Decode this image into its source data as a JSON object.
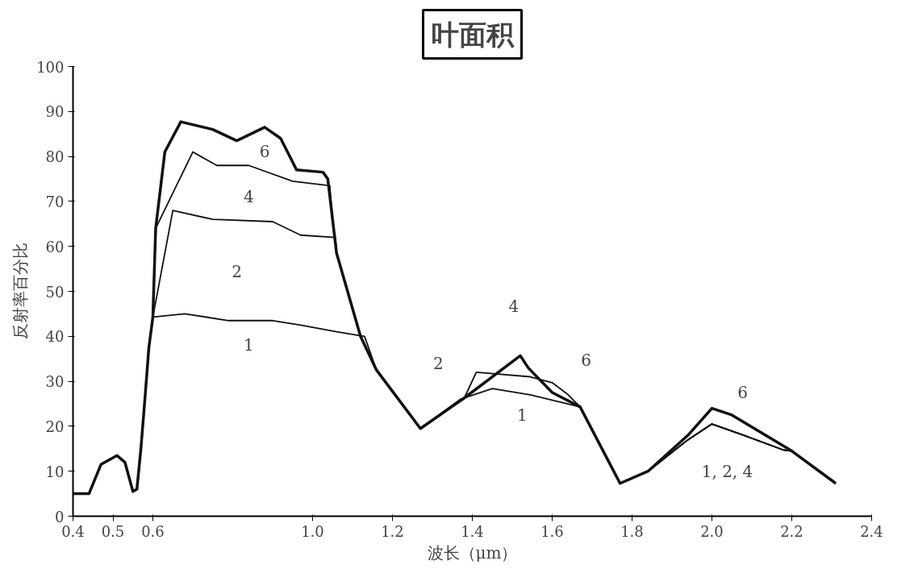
{
  "chart_data": {
    "type": "line",
    "title": "叶面积",
    "xlabel": "波长（μm）",
    "ylabel": "反射率百分比",
    "xlim": [
      0.4,
      2.4
    ],
    "xticks": [
      0.4,
      0.5,
      0.6,
      {
        "value": 1.0,
        "label": "1.0"
      },
      1.2,
      1.4,
      1.6,
      1.8,
      {
        "value": 2.0,
        "label": "2.0"
      },
      2.2,
      2.4
    ],
    "ylim": [
      0,
      100
    ],
    "yticks": [
      0,
      10,
      20,
      30,
      40,
      50,
      60,
      70,
      80,
      90,
      100
    ],
    "grid": false,
    "marker": "none",
    "line_style": "solid",
    "series": [
      {
        "color": "#111111",
        "x": [
          0.4,
          0.44,
          0.47,
          0.51,
          0.53,
          0.55,
          0.56,
          0.57,
          0.58,
          0.59,
          0.6,
          0.68,
          0.79,
          0.9,
          0.97,
          1.06,
          1.13,
          1.16,
          1.27,
          1.37,
          1.45,
          1.545,
          1.67,
          1.77,
          1.84,
          1.94,
          2.0,
          2.08,
          2.18,
          2.2,
          2.31
        ],
        "values": [
          5,
          5,
          11.5,
          13.5,
          12,
          5.5,
          6,
          15,
          26,
          37.5,
          44.3,
          45,
          43.5,
          43.5,
          42.5,
          41,
          40,
          32.5,
          19.5,
          26,
          28.4,
          27,
          24.3,
          7.3,
          10,
          17,
          20.5,
          18,
          14.7,
          14.5,
          7.3
        ]
      },
      {
        "color": "#111111",
        "x": [
          0.4,
          0.44,
          0.47,
          0.51,
          0.53,
          0.55,
          0.56,
          0.57,
          0.58,
          0.59,
          0.6,
          0.65,
          0.75,
          0.9,
          0.97,
          1.057,
          1.06,
          1.12,
          1.16,
          1.27,
          1.38,
          1.41,
          1.545,
          1.6,
          1.64,
          1.67,
          1.77,
          1.84,
          1.94,
          2.0,
          2.08,
          2.18,
          2.2,
          2.31
        ],
        "values": [
          5,
          5,
          11.5,
          13.5,
          12,
          5.5,
          6,
          15,
          26,
          37.5,
          44.3,
          68,
          66,
          65.5,
          62.5,
          62,
          58.5,
          40,
          32.5,
          19.5,
          26.3,
          32,
          31,
          29.7,
          27,
          24.3,
          7.3,
          10,
          17,
          20.5,
          18,
          14.7,
          14.5,
          7.3
        ]
      },
      {
        "color": "#111111",
        "x": [
          0.4,
          0.44,
          0.47,
          0.51,
          0.53,
          0.55,
          0.56,
          0.57,
          0.58,
          0.59,
          0.6,
          0.607,
          0.7,
          0.76,
          0.84,
          0.95,
          1.043,
          1.05,
          1.06,
          1.12,
          1.16,
          1.27,
          1.38,
          1.52,
          1.54,
          1.6,
          1.67,
          1.77,
          1.84,
          1.94,
          2.0,
          2.08,
          2.18,
          2.2,
          2.31
        ],
        "values": [
          5,
          5,
          11.5,
          13.5,
          12,
          5.5,
          6,
          15,
          26,
          37.5,
          44.3,
          64,
          81,
          78,
          78,
          74.5,
          73.5,
          66,
          58.5,
          40,
          32.5,
          19.5,
          26.3,
          35.7,
          33,
          27.5,
          24.3,
          7.3,
          10,
          17,
          20.5,
          18,
          14.7,
          14.5,
          7.3
        ]
      },
      {
        "color": "#111111",
        "x": [
          0.4,
          0.44,
          0.47,
          0.51,
          0.53,
          0.55,
          0.56,
          0.57,
          0.58,
          0.59,
          0.6,
          0.607,
          0.63,
          0.67,
          0.75,
          0.81,
          0.88,
          0.92,
          0.96,
          1.026,
          1.038,
          1.05,
          1.06,
          1.12,
          1.16,
          1.27,
          1.38,
          1.52,
          1.54,
          1.6,
          1.67,
          1.77,
          1.84,
          1.94,
          2.0,
          2.05,
          2.2,
          2.31
        ],
        "values": [
          5,
          5,
          11.5,
          13.5,
          12,
          5.5,
          6,
          15,
          26,
          37.5,
          44.3,
          64,
          81,
          87.7,
          86,
          83.5,
          86.5,
          84,
          77,
          76.5,
          75,
          66,
          58.5,
          40,
          32.5,
          19.5,
          26.3,
          35.7,
          33,
          27.5,
          24.3,
          7.3,
          10,
          18,
          24,
          22.5,
          14.5,
          7.3
        ]
      }
    ],
    "annotations": [
      {
        "text": "6",
        "x": 0.88,
        "y": 86.5
      },
      {
        "text": "4",
        "x": 0.84,
        "y": 78
      },
      {
        "text": "2",
        "x": 0.79,
        "y": 66
      },
      {
        "text": "1",
        "x": 0.84,
        "y": 43.5
      },
      {
        "text": "2",
        "x": 1.41,
        "y": 32
      },
      {
        "text": "4",
        "x": 1.52,
        "y": 35.7
      },
      {
        "text": "6",
        "x": 1.6,
        "y": 27.5
      },
      {
        "text": "1",
        "x": 1.545,
        "y": 27
      },
      {
        "text": "6",
        "x": 2.0,
        "y": 24
      },
      {
        "text": "1, 2, 4",
        "x": 2.0,
        "y": 20.5
      }
    ]
  }
}
